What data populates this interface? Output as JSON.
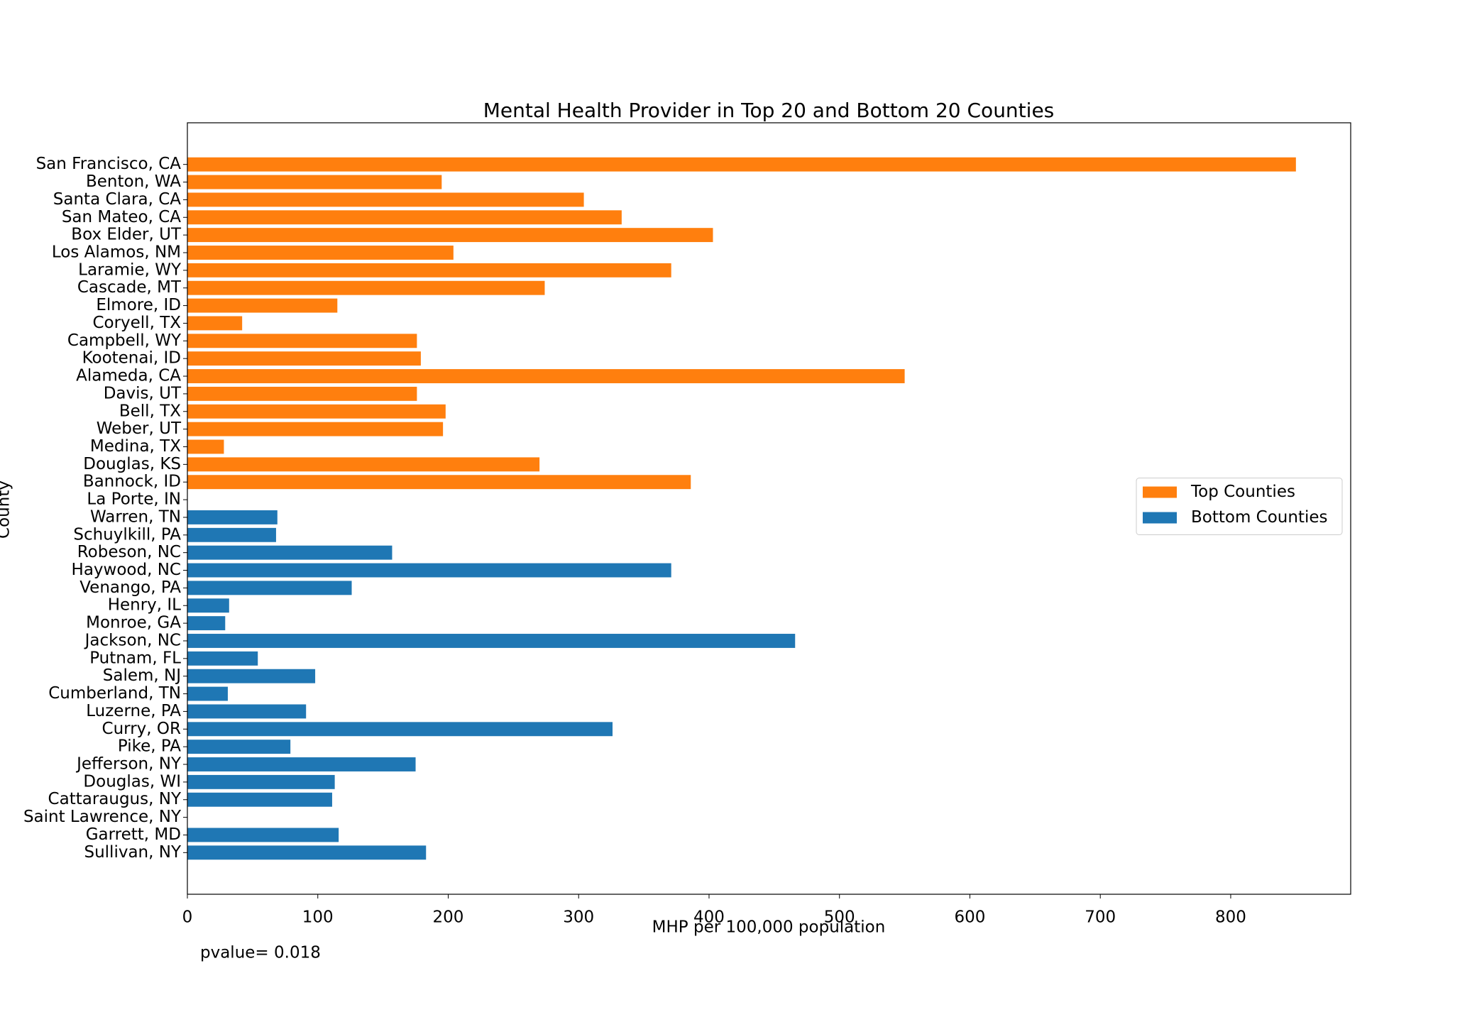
{
  "chart_data": {
    "type": "barh",
    "title": "Mental Health Provider in Top 20 and Bottom 20 Counties",
    "x_label": "MHP per 100,000 population",
    "y_label": "County",
    "annotation": "pvalue= 0.018",
    "categories": [
      "San Francisco, CA",
      "Benton, WA",
      "Santa Clara, CA",
      "San Mateo, CA",
      "Box Elder, UT",
      "Los Alamos, NM",
      "Laramie, WY",
      "Cascade, MT",
      "Elmore, ID",
      "Coryell, TX",
      "Campbell, WY",
      "Kootenai, ID",
      "Alameda, CA",
      "Davis, UT",
      "Bell, TX",
      "Weber, UT",
      "Medina, TX",
      "Douglas, KS",
      "Bannock, ID",
      "La Porte, IN",
      "Warren, TN",
      "Schuylkill, PA",
      "Robeson, NC",
      "Haywood, NC",
      "Venango, PA",
      "Henry, IL",
      "Monroe, GA",
      "Jackson, NC",
      "Putnam, FL",
      "Salem, NJ",
      "Cumberland, TN",
      "Luzerne, PA",
      "Curry, OR",
      "Pike, PA",
      "Jefferson, NY",
      "Douglas, WI",
      "Cattaraugus, NY",
      "Saint Lawrence, NY",
      "Garrett, MD",
      "Sullivan, NY"
    ],
    "series": [
      {
        "name": "Top Counties",
        "color": "#ff7f0e",
        "values": [
          850,
          195,
          304,
          333,
          403,
          204,
          371,
          274,
          115,
          42,
          176,
          179,
          550,
          176,
          198,
          196,
          28,
          270,
          386,
          null,
          null,
          null,
          null,
          null,
          null,
          null,
          null,
          null,
          null,
          null,
          null,
          null,
          null,
          null,
          null,
          null,
          null,
          null,
          null,
          null
        ]
      },
      {
        "name": "Bottom Counties",
        "color": "#1f77b4",
        "values": [
          null,
          null,
          null,
          null,
          null,
          null,
          null,
          null,
          null,
          null,
          null,
          null,
          null,
          null,
          null,
          null,
          null,
          null,
          null,
          null,
          69,
          68,
          157,
          371,
          126,
          32,
          29,
          466,
          54,
          98,
          31,
          91,
          326,
          79,
          175,
          113,
          111,
          null,
          116,
          183
        ]
      }
    ],
    "xlim": [
      0,
      892
    ],
    "xticks": [
      0,
      100,
      200,
      300,
      400,
      500,
      600,
      700,
      800
    ],
    "legend": "center right"
  }
}
